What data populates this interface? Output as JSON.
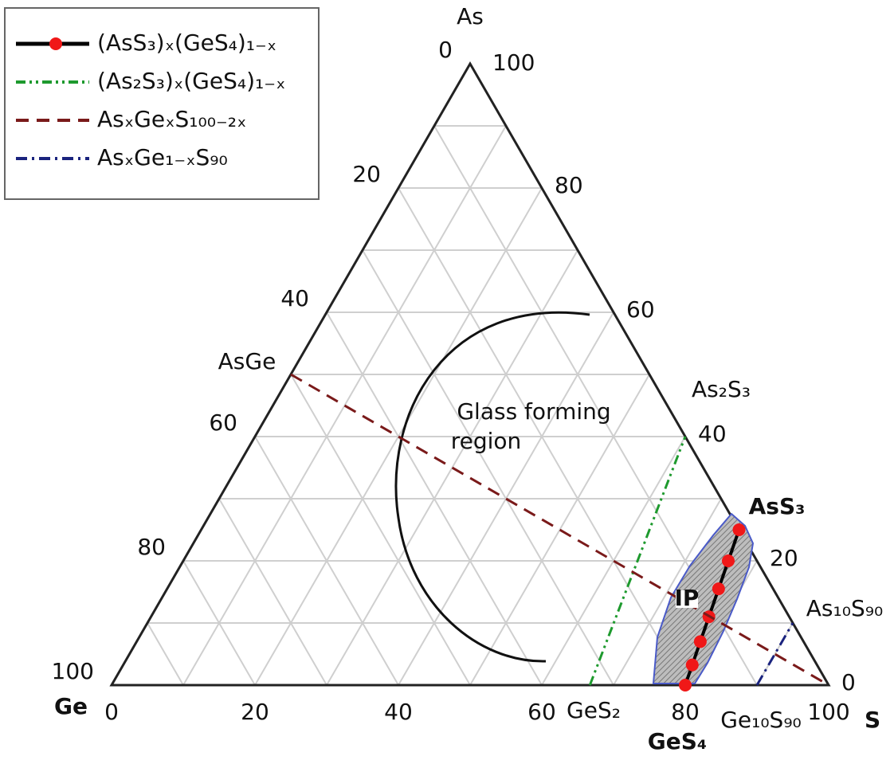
{
  "chart_data": {
    "type": "ternary",
    "vertices": {
      "as": "As",
      "ge": "Ge",
      "s": "S"
    },
    "s_ticks": [
      0,
      20,
      40,
      60,
      80,
      100
    ],
    "ge_ticks": [
      0,
      20,
      40,
      60,
      80,
      100
    ],
    "as_ticks": [
      0,
      20,
      40,
      60,
      80,
      100
    ],
    "grid": [
      10,
      20,
      30,
      40,
      50,
      60,
      70,
      80,
      90
    ],
    "series": [
      {
        "name": "(AsS₃)ₓ(GeS₄)₁₋ₓ",
        "color": "#000000",
        "label_color": "#e8202a",
        "marker_color": "#f01818",
        "linestyle": "solid",
        "as": [
          0,
          3.25,
          7,
          11,
          15.5,
          20,
          25
        ],
        "ge": [
          20,
          17.4,
          14.4,
          11.2,
          7.6,
          4,
          0
        ],
        "s": [
          80,
          79.35,
          78.6,
          77.8,
          76.9,
          76,
          75
        ]
      },
      {
        "name": "(As₂S₃)ₓ(GeS₄)₁₋ₓ",
        "color": "#1e9a2e",
        "label_color": "#2fbf3a",
        "linestyle": "dashdotdot",
        "as": [
          0,
          40
        ],
        "ge": [
          33.3,
          0
        ],
        "s": [
          66.7,
          60
        ]
      },
      {
        "name": "AsₓGeₓS₁₀₀₋₂ₓ",
        "color": "#7a1a1a",
        "label_color": "#8a2a2a",
        "linestyle": "dashed",
        "as": [
          50,
          0
        ],
        "ge": [
          50,
          0
        ],
        "s": [
          0,
          100
        ]
      },
      {
        "name": "AsₓGe₁₋ₓS₉₀",
        "color": "#1a237e",
        "label_color": "#f0922a",
        "linestyle": "dashdot",
        "as": [
          0,
          10
        ],
        "ge": [
          10,
          0
        ],
        "s": [
          90,
          90
        ]
      }
    ],
    "annotations": [
      {
        "text": "AsGe",
        "color": "#7a1a1a"
      },
      {
        "text": "As₂S₃",
        "color": "#1e9a2e"
      },
      {
        "text": "AsS₃",
        "color": "#e8202a"
      },
      {
        "text": "GeS₄",
        "color": "#e8202a"
      },
      {
        "text": "GeS₂",
        "color": "#1e9a2e"
      },
      {
        "text": "Ge₁₀S₉₀",
        "color": "#1a237e"
      },
      {
        "text": "As₁₀S₉₀",
        "color": "#1a237e"
      },
      {
        "text": "Glass forming",
        "color": "#111111"
      },
      {
        "text": "region",
        "color": "#111111"
      },
      {
        "text": "IP",
        "color": "#111111"
      }
    ]
  }
}
